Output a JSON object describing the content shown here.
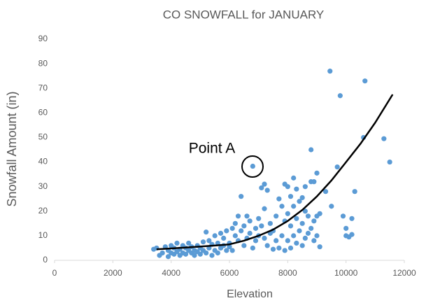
{
  "chart_data": {
    "type": "scatter",
    "title": "CO SNOWFALL for JANUARY",
    "x_label": "Elevation",
    "y_label": "Snowfall Amount (in)",
    "annotation": "Point A",
    "xlim": [
      0,
      12000
    ],
    "xticks": [
      0,
      2000,
      4000,
      6000,
      8000,
      10000,
      12000
    ],
    "ylim": [
      0,
      90
    ],
    "yticks": [
      0,
      10,
      20,
      30,
      40,
      50,
      60,
      70,
      80,
      90
    ],
    "grid": false,
    "series": [
      {
        "color": "#5b9bd5",
        "x": [
          3400,
          3500,
          3600,
          3700,
          3800,
          3900,
          3900,
          4000,
          4000,
          4100,
          4100,
          4200,
          4200,
          4300,
          4300,
          4400,
          4400,
          4500,
          4500,
          4600,
          4600,
          4700,
          4700,
          4800,
          4800,
          4900,
          4900,
          5000,
          5000,
          5100,
          5100,
          5200,
          5200,
          5300,
          5300,
          5400,
          5400,
          5500,
          5500,
          5600,
          5600,
          5700,
          5700,
          5800,
          5800,
          5900,
          5900,
          6000,
          6000,
          6100,
          6100,
          6200,
          6200,
          6300,
          6300,
          6400,
          6400,
          6500,
          6500,
          6600,
          6600,
          6700,
          6700,
          6800,
          6800,
          6900,
          6900,
          7000,
          7000,
          7100,
          7100,
          7200,
          7200,
          7200,
          7300,
          7300,
          7400,
          7400,
          7500,
          7500,
          7600,
          7600,
          7700,
          7700,
          7800,
          7800,
          7900,
          7900,
          7900,
          8000,
          8000,
          8000,
          8100,
          8100,
          8100,
          8200,
          8200,
          8200,
          8300,
          8300,
          8300,
          8400,
          8400,
          8500,
          8500,
          8500,
          8600,
          8600,
          8600,
          8700,
          8700,
          8800,
          8800,
          8800,
          8900,
          8900,
          8900,
          9000,
          9000,
          9000,
          9100,
          9100,
          9300,
          9450,
          9500,
          9700,
          9800,
          9900,
          10000,
          10000,
          10100,
          10200,
          10200,
          10300,
          10600,
          10650,
          11300,
          11500
        ],
        "values": [
          4.5,
          5,
          2,
          3,
          5.5,
          4,
          1.5,
          3,
          6,
          2.5,
          5,
          3.5,
          7,
          2,
          4.5,
          3,
          6,
          2.5,
          5,
          4,
          7,
          3,
          5.5,
          2,
          4,
          6,
          3.5,
          5,
          2.5,
          4,
          7.5,
          11.5,
          3,
          5,
          8,
          2,
          6.5,
          4,
          10,
          3,
          7,
          5,
          11,
          6,
          9,
          4,
          12,
          7,
          5.5,
          13,
          4,
          10,
          15,
          8,
          18,
          26,
          12,
          14,
          6,
          18,
          9,
          11,
          16,
          38.3,
          5,
          13,
          8,
          17,
          10,
          29.5,
          14,
          31,
          21,
          9,
          28.5,
          6,
          15,
          11,
          12,
          4.5,
          18,
          8,
          25,
          5,
          22,
          10,
          31,
          16,
          4,
          30,
          19,
          8,
          26,
          14,
          5,
          33.5,
          22,
          10,
          29,
          17,
          7,
          24,
          12,
          25.5,
          15,
          6,
          30,
          20,
          9,
          18,
          11,
          45,
          32,
          13,
          32,
          16,
          8,
          35.5,
          18,
          10,
          19,
          5.5,
          28,
          77,
          22,
          38,
          67,
          18,
          13,
          10,
          9.5,
          17,
          10.5,
          28,
          50,
          73,
          49.5,
          40
        ]
      }
    ],
    "trendline": {
      "color": "#000000",
      "x": [
        3500,
        4500,
        5500,
        6000,
        6500,
        7000,
        7500,
        8000,
        8500,
        9000,
        9500,
        10000,
        10500,
        11000,
        11600
      ],
      "values": [
        4.5,
        5.2,
        6,
        6.5,
        8,
        10,
        12.5,
        16,
        20.5,
        26,
        32.5,
        40,
        47.5,
        56,
        67.5
      ]
    }
  }
}
